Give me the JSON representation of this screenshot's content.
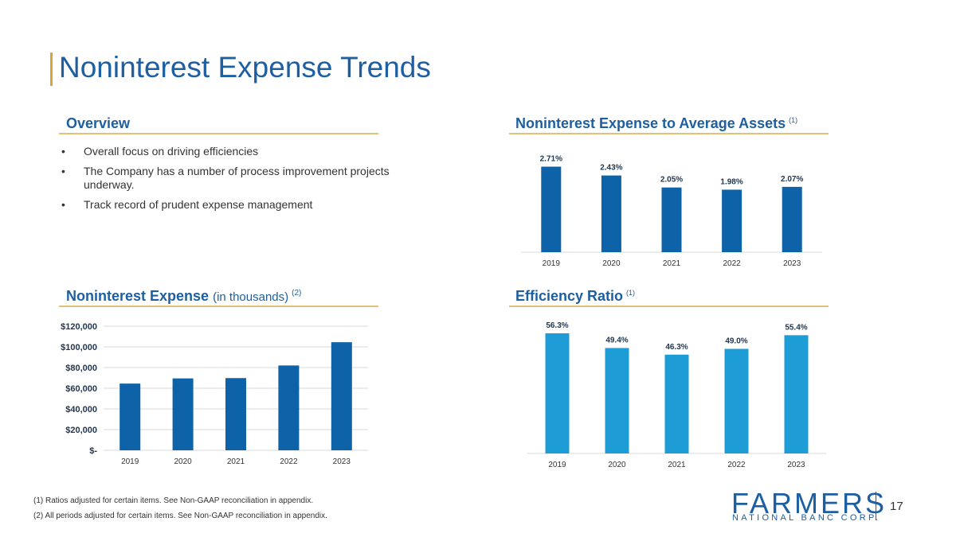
{
  "page": {
    "title": "Noninterest Expense Trends",
    "number": "17"
  },
  "overview": {
    "title": "Overview",
    "bullets": [
      "Overall focus on driving efficiencies",
      "The Company has a number of process improvement projects underway.",
      "Track record of prudent expense management"
    ]
  },
  "sections": {
    "assets_title": "Noninterest Expense to Average Assets",
    "assets_note": "(1)",
    "expense_title": "Noninterest Expense",
    "expense_subtitle": "(in thousands)",
    "expense_note": "(2)",
    "efficiency_title": "Efficiency Ratio",
    "efficiency_note": "(1)"
  },
  "footnotes": [
    "(1) Ratios adjusted for certain items. See Non-GAAP reconciliation in appendix.",
    "(2) All periods adjusted for certain items. See Non-GAAP reconciliation in appendix."
  ],
  "logo": {
    "word": "FARMERS",
    "sub": "NATIONAL BANC CORP."
  },
  "colors": {
    "brand_blue": "#1d5fa0",
    "bar_blue": "#0e62a8",
    "bar_light": "#1e9cd5",
    "gold": "#d9a43a"
  },
  "chart_data": [
    {
      "id": "assets",
      "type": "bar",
      "title": "Noninterest Expense to Average Assets",
      "categories": [
        "2019",
        "2020",
        "2021",
        "2022",
        "2023"
      ],
      "values": [
        2.71,
        2.43,
        2.05,
        1.98,
        2.07
      ],
      "labels": [
        "2.71%",
        "2.43%",
        "2.05%",
        "1.98%",
        "2.07%"
      ],
      "ylim": [
        0,
        3.1
      ],
      "color": "#0e62a8"
    },
    {
      "id": "expense",
      "type": "bar",
      "title": "Noninterest Expense (in thousands)",
      "categories": [
        "2019",
        "2020",
        "2021",
        "2022",
        "2023"
      ],
      "values": [
        64500,
        69500,
        69800,
        82000,
        104500
      ],
      "ylim": [
        0,
        120000
      ],
      "yticks": [
        0,
        20000,
        40000,
        60000,
        80000,
        100000,
        120000
      ],
      "ytick_labels": [
        "$-",
        "$20,000",
        "$40,000",
        "$60,000",
        "$80,000",
        "$100,000",
        "$120,000"
      ],
      "grid": true,
      "color": "#0e62a8"
    },
    {
      "id": "efficiency",
      "type": "bar",
      "title": "Efficiency Ratio",
      "categories": [
        "2019",
        "2020",
        "2021",
        "2022",
        "2023"
      ],
      "values": [
        56.3,
        49.4,
        46.3,
        49.0,
        55.4
      ],
      "labels": [
        "56.3%",
        "49.4%",
        "46.3%",
        "49.0%",
        "55.4%"
      ],
      "ylim": [
        0,
        60
      ],
      "color": "#1e9cd5"
    }
  ]
}
